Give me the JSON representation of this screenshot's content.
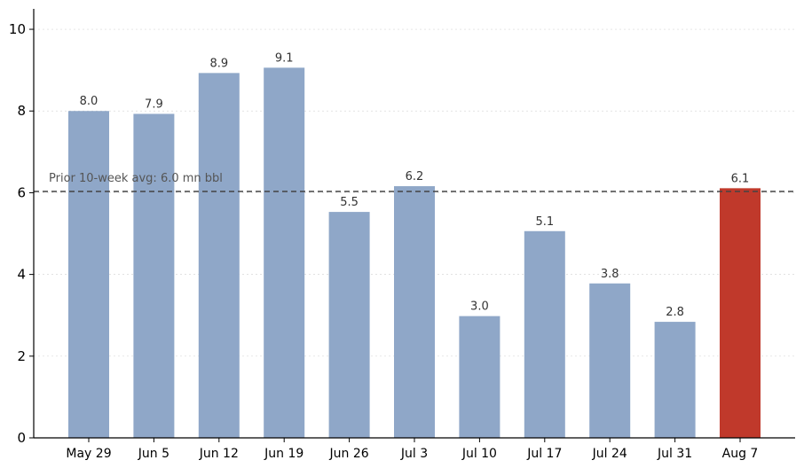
{
  "chart_data": {
    "type": "bar",
    "title": "",
    "xlabel": "",
    "ylabel": "",
    "categories": [
      "May 29",
      "Jun 5",
      "Jun 12",
      "Jun 19",
      "Jun 26",
      "Jul 3",
      "Jul 10",
      "Jul 17",
      "Jul 24",
      "Jul 31",
      "Aug 7"
    ],
    "values": [
      8.0,
      7.93,
      8.93,
      9.06,
      5.53,
      6.16,
      2.98,
      5.06,
      3.78,
      2.84,
      6.11
    ],
    "data_labels": [
      "8.0",
      "7.9",
      "8.9",
      "9.1",
      "5.5",
      "6.2",
      "3.0",
      "5.1",
      "3.8",
      "2.8",
      "6.1"
    ],
    "ylim": [
      0,
      10.5
    ],
    "yticks": [
      0,
      2,
      4,
      6,
      8,
      10
    ],
    "ytick_labels": [
      "0",
      "2",
      "4",
      "6",
      "8",
      "10"
    ],
    "grid": "horizontal",
    "highlight_index": 10,
    "colors": {
      "bar": "#8fa7c8",
      "highlight": "#c0392b"
    },
    "reference_line": {
      "value": 6.03,
      "label": "Prior 10-week avg: 6.0 mn bbl"
    }
  }
}
